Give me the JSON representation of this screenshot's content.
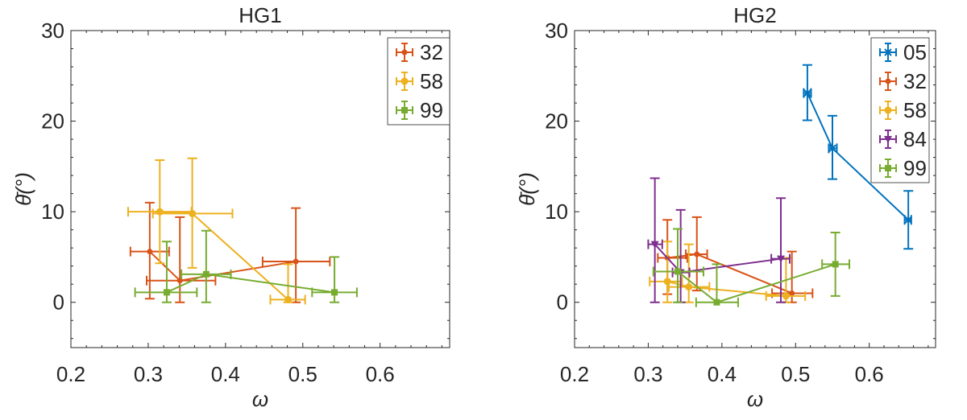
{
  "chart_data": [
    {
      "type": "scatter",
      "title": "HG1",
      "xlabel": "ω",
      "ylabel": "θ̄(°)",
      "xlim": [
        0.2,
        0.69
      ],
      "ylim": [
        -5,
        30
      ],
      "xticks": [
        "0.2",
        "0.3",
        "0.4",
        "0.5",
        "0.6"
      ],
      "yticks": [
        "0",
        "10",
        "20",
        "30"
      ],
      "grid": false,
      "legend_placement": "top-right",
      "series": [
        {
          "name": "32",
          "color": "#D95319",
          "marker": "dot",
          "points": [
            {
              "x": 0.302,
              "y": 5.6,
              "xmin": 0.277,
              "xmax": 0.327,
              "ymin": 0.4,
              "ymax": 11.0
            },
            {
              "x": 0.341,
              "y": 2.4,
              "xmin": 0.298,
              "xmax": 0.387,
              "ymin": 0.0,
              "ymax": 9.4
            },
            {
              "x": 0.491,
              "y": 4.5,
              "xmin": 0.448,
              "xmax": 0.535,
              "ymin": 0.0,
              "ymax": 10.4
            }
          ]
        },
        {
          "name": "58",
          "color": "#EDB120",
          "marker": "circle",
          "points": [
            {
              "x": 0.315,
              "y": 10.0,
              "xmin": 0.274,
              "xmax": 0.356,
              "ymin": 4.3,
              "ymax": 15.7
            },
            {
              "x": 0.357,
              "y": 9.8,
              "xmin": 0.306,
              "xmax": 0.409,
              "ymin": 3.8,
              "ymax": 15.9
            },
            {
              "x": 0.481,
              "y": 0.3,
              "xmin": 0.458,
              "xmax": 0.503,
              "ymin": 0.0,
              "ymax": 4.2
            }
          ]
        },
        {
          "name": "99",
          "color": "#77AC30",
          "marker": "square",
          "points": [
            {
              "x": 0.324,
              "y": 1.1,
              "xmin": 0.283,
              "xmax": 0.363,
              "ymin": 0.0,
              "ymax": 6.7
            },
            {
              "x": 0.375,
              "y": 3.1,
              "xmin": 0.343,
              "xmax": 0.407,
              "ymin": 0.0,
              "ymax": 7.9
            },
            {
              "x": 0.541,
              "y": 1.1,
              "xmin": 0.512,
              "xmax": 0.57,
              "ymin": 0.0,
              "ymax": 5.0
            }
          ]
        }
      ]
    },
    {
      "type": "scatter",
      "title": "HG2",
      "xlabel": "ω",
      "ylabel": "θ̄(°)",
      "xlim": [
        0.2,
        0.69
      ],
      "ylim": [
        -5,
        30
      ],
      "xticks": [
        "0.2",
        "0.3",
        "0.4",
        "0.5",
        "0.6"
      ],
      "yticks": [
        "0",
        "10",
        "20",
        "30"
      ],
      "grid": false,
      "legend_placement": "top-right",
      "series": [
        {
          "name": "05",
          "color": "#0072BD",
          "marker": "cross",
          "points": [
            {
              "x": 0.516,
              "y": 23.1,
              "xmin": 0.511,
              "xmax": 0.521,
              "ymin": 20.1,
              "ymax": 26.2
            },
            {
              "x": 0.55,
              "y": 17.0,
              "xmin": 0.545,
              "xmax": 0.556,
              "ymin": 13.6,
              "ymax": 20.6
            },
            {
              "x": 0.653,
              "y": 9.1,
              "xmin": 0.648,
              "xmax": 0.657,
              "ymin": 5.9,
              "ymax": 12.3
            }
          ]
        },
        {
          "name": "32",
          "color": "#D95319",
          "marker": "dot",
          "points": [
            {
              "x": 0.326,
              "y": 4.9,
              "xmin": 0.313,
              "xmax": 0.353,
              "ymin": 0.9,
              "ymax": 9.1
            },
            {
              "x": 0.366,
              "y": 5.3,
              "xmin": 0.351,
              "xmax": 0.38,
              "ymin": 1.3,
              "ymax": 9.4
            },
            {
              "x": 0.495,
              "y": 1.0,
              "xmin": 0.468,
              "xmax": 0.523,
              "ymin": 0.0,
              "ymax": 5.6
            }
          ]
        },
        {
          "name": "58",
          "color": "#EDB120",
          "marker": "circle",
          "points": [
            {
              "x": 0.326,
              "y": 2.3,
              "xmin": 0.302,
              "xmax": 0.346,
              "ymin": 0.0,
              "ymax": 6.7
            },
            {
              "x": 0.355,
              "y": 1.7,
              "xmin": 0.328,
              "xmax": 0.383,
              "ymin": 0.0,
              "ymax": 6.4
            },
            {
              "x": 0.487,
              "y": 0.7,
              "xmin": 0.46,
              "xmax": 0.513,
              "ymin": 0.0,
              "ymax": 4.9
            }
          ]
        },
        {
          "name": "84",
          "color": "#7E2F8E",
          "marker": "triangle-down",
          "points": [
            {
              "x": 0.309,
              "y": 6.4,
              "xmin": 0.3,
              "xmax": 0.319,
              "ymin": 0.0,
              "ymax": 13.7
            },
            {
              "x": 0.344,
              "y": 3.3,
              "xmin": 0.333,
              "xmax": 0.356,
              "ymin": 0.0,
              "ymax": 10.2
            },
            {
              "x": 0.48,
              "y": 4.8,
              "xmin": 0.467,
              "xmax": 0.492,
              "ymin": 0.0,
              "ymax": 11.5
            }
          ]
        },
        {
          "name": "99",
          "color": "#77AC30",
          "marker": "square",
          "points": [
            {
              "x": 0.34,
              "y": 3.4,
              "xmin": 0.307,
              "xmax": 0.375,
              "ymin": 0.0,
              "ymax": 8.1
            },
            {
              "x": 0.393,
              "y": 0.0,
              "xmin": 0.365,
              "xmax": 0.422,
              "ymin": 0.0,
              "ymax": 4.2
            },
            {
              "x": 0.554,
              "y": 4.2,
              "xmin": 0.536,
              "xmax": 0.573,
              "ymin": 0.7,
              "ymax": 7.7
            }
          ]
        }
      ]
    }
  ]
}
